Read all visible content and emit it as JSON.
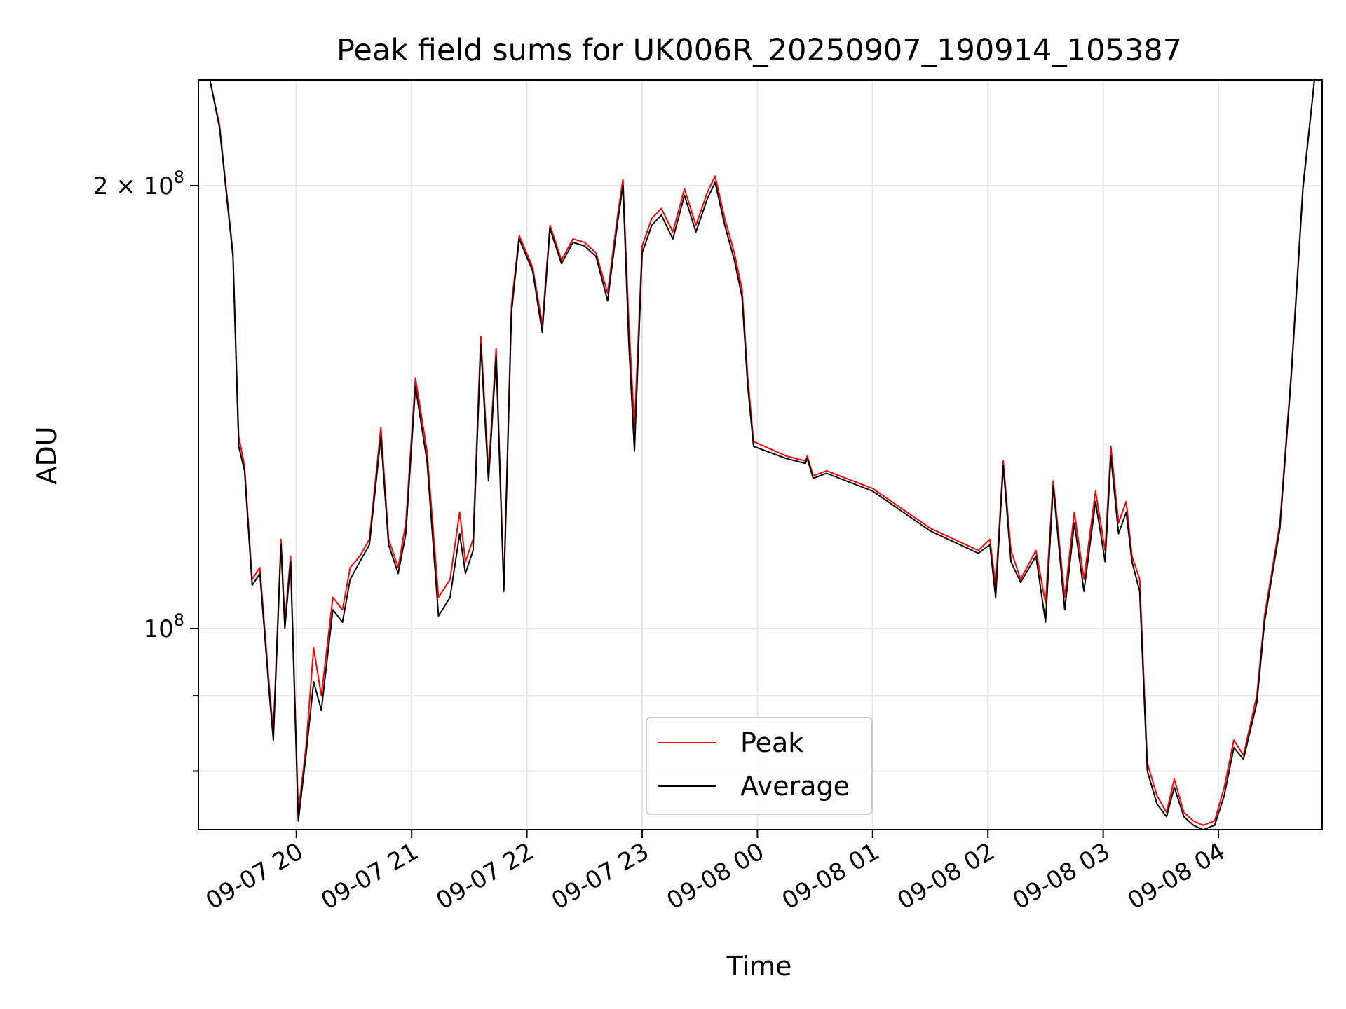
{
  "chart_data": {
    "type": "line",
    "title": "Peak field sums for UK006R_20250907_190914_105387",
    "xlabel": "Time",
    "ylabel": "ADU",
    "yscale": "log",
    "ylim": [
      73000000,
      236000000
    ],
    "xlim": [
      "2025-09-07 19:09",
      "2025-09-08 04:54"
    ],
    "grid": true,
    "legend_position": "lower-center",
    "x_ticks": [
      {
        "x": "2025-09-07 20:00",
        "label": "09-07 20"
      },
      {
        "x": "2025-09-07 21:00",
        "label": "09-07 21"
      },
      {
        "x": "2025-09-07 22:00",
        "label": "09-07 22"
      },
      {
        "x": "2025-09-07 23:00",
        "label": "09-07 23"
      },
      {
        "x": "2025-09-08 00:00",
        "label": "09-08 00"
      },
      {
        "x": "2025-09-08 01:00",
        "label": "09-08 01"
      },
      {
        "x": "2025-09-08 02:00",
        "label": "09-08 02"
      },
      {
        "x": "2025-09-08 03:00",
        "label": "09-08 03"
      },
      {
        "x": "2025-09-08 04:00",
        "label": "09-08 04"
      }
    ],
    "y_ticks": [
      {
        "value": 200000000,
        "base": "2 × 10",
        "exp": "8"
      },
      {
        "value": 100000000,
        "base": "10",
        "exp": "8"
      }
    ],
    "y_minor_ticks": [
      90000000,
      80000000
    ],
    "series": [
      {
        "name": "Peak",
        "color": "#ff0000",
        "points": [
          [
            "2025-09-07 19:09",
            236000000
          ],
          [
            "2025-09-07 19:15",
            236000000
          ],
          [
            "2025-09-07 19:20",
            220000000
          ],
          [
            "2025-09-07 19:27",
            180000000
          ],
          [
            "2025-09-07 19:30",
            135000000
          ],
          [
            "2025-09-07 19:33",
            129000000
          ],
          [
            "2025-09-07 19:37",
            108000000
          ],
          [
            "2025-09-07 19:41",
            110000000
          ],
          [
            "2025-09-07 19:46",
            91000000
          ],
          [
            "2025-09-07 19:48",
            85000000
          ],
          [
            "2025-09-07 19:52",
            115000000
          ],
          [
            "2025-09-07 19:54",
            101000000
          ],
          [
            "2025-09-07 19:57",
            112000000
          ],
          [
            "2025-09-07 20:01",
            75000000
          ],
          [
            "2025-09-07 20:05",
            83000000
          ],
          [
            "2025-09-07 20:09",
            97000000
          ],
          [
            "2025-09-07 20:13",
            90000000
          ],
          [
            "2025-09-07 20:19",
            105000000
          ],
          [
            "2025-09-07 20:24",
            103000000
          ],
          [
            "2025-09-07 20:28",
            110000000
          ],
          [
            "2025-09-07 20:33",
            112000000
          ],
          [
            "2025-09-07 20:38",
            115000000
          ],
          [
            "2025-09-07 20:44",
            137000000
          ],
          [
            "2025-09-07 20:48",
            115000000
          ],
          [
            "2025-09-07 20:53",
            110000000
          ],
          [
            "2025-09-07 20:57",
            118000000
          ],
          [
            "2025-09-07 21:02",
            148000000
          ],
          [
            "2025-09-07 21:08",
            132000000
          ],
          [
            "2025-09-07 21:14",
            105000000
          ],
          [
            "2025-09-07 21:20",
            108000000
          ],
          [
            "2025-09-07 21:25",
            120000000
          ],
          [
            "2025-09-07 21:28",
            111000000
          ],
          [
            "2025-09-07 21:32",
            115000000
          ],
          [
            "2025-09-07 21:36",
            158000000
          ],
          [
            "2025-09-07 21:40",
            128000000
          ],
          [
            "2025-09-07 21:44",
            155000000
          ],
          [
            "2025-09-07 21:48",
            107000000
          ],
          [
            "2025-09-07 21:52",
            166000000
          ],
          [
            "2025-09-07 21:56",
            185000000
          ],
          [
            "2025-09-07 22:03",
            176000000
          ],
          [
            "2025-09-07 22:08",
            161000000
          ],
          [
            "2025-09-07 22:12",
            188000000
          ],
          [
            "2025-09-07 22:18",
            178000000
          ],
          [
            "2025-09-07 22:24",
            184000000
          ],
          [
            "2025-09-07 22:30",
            183000000
          ],
          [
            "2025-09-07 22:36",
            180000000
          ],
          [
            "2025-09-07 22:42",
            169000000
          ],
          [
            "2025-09-07 22:47",
            190000000
          ],
          [
            "2025-09-07 22:50",
            202000000
          ],
          [
            "2025-09-07 22:53",
            162000000
          ],
          [
            "2025-09-07 22:56",
            137000000
          ],
          [
            "2025-09-07 23:00",
            182000000
          ],
          [
            "2025-09-07 23:05",
            190000000
          ],
          [
            "2025-09-07 23:10",
            193000000
          ],
          [
            "2025-09-07 23:16",
            186000000
          ],
          [
            "2025-09-07 23:22",
            199000000
          ],
          [
            "2025-09-07 23:28",
            188000000
          ],
          [
            "2025-09-07 23:34",
            198000000
          ],
          [
            "2025-09-07 23:38",
            203000000
          ],
          [
            "2025-09-07 23:43",
            190000000
          ],
          [
            "2025-09-07 23:48",
            180000000
          ],
          [
            "2025-09-07 23:52",
            170000000
          ],
          [
            "2025-09-07 23:55",
            148000000
          ],
          [
            "2025-09-07 23:58",
            134000000
          ],
          [
            "2025-09-08 00:15",
            131000000
          ],
          [
            "2025-09-08 00:25",
            130000000
          ],
          [
            "2025-09-08 00:26",
            131000000
          ],
          [
            "2025-09-08 00:29",
            127000000
          ],
          [
            "2025-09-08 00:36",
            128000000
          ],
          [
            "2025-09-08 01:00",
            124500000
          ],
          [
            "2025-09-08 01:30",
            117000000
          ],
          [
            "2025-09-08 01:55",
            113000000
          ],
          [
            "2025-09-08 02:01",
            115000000
          ],
          [
            "2025-09-08 02:04",
            107000000
          ],
          [
            "2025-09-08 02:08",
            130000000
          ],
          [
            "2025-09-08 02:12",
            113000000
          ],
          [
            "2025-09-08 02:17",
            108000000
          ],
          [
            "2025-09-08 02:25",
            113000000
          ],
          [
            "2025-09-08 02:30",
            104000000
          ],
          [
            "2025-09-08 02:34",
            126000000
          ],
          [
            "2025-09-08 02:40",
            105000000
          ],
          [
            "2025-09-08 02:45",
            120000000
          ],
          [
            "2025-09-08 02:50",
            108000000
          ],
          [
            "2025-09-08 02:56",
            124000000
          ],
          [
            "2025-09-08 03:01",
            113000000
          ],
          [
            "2025-09-08 03:04",
            133000000
          ],
          [
            "2025-09-08 03:08",
            118000000
          ],
          [
            "2025-09-08 03:12",
            122000000
          ],
          [
            "2025-09-08 03:15",
            112000000
          ],
          [
            "2025-09-08 03:19",
            108000000
          ],
          [
            "2025-09-08 03:23",
            81000000
          ],
          [
            "2025-09-08 03:28",
            77000000
          ],
          [
            "2025-09-08 03:33",
            75000000
          ],
          [
            "2025-09-08 03:37",
            79000000
          ],
          [
            "2025-09-08 03:42",
            75000000
          ],
          [
            "2025-09-08 03:47",
            74000000
          ],
          [
            "2025-09-08 03:52",
            73500000
          ],
          [
            "2025-09-08 03:58",
            74000000
          ],
          [
            "2025-09-08 04:03",
            78000000
          ],
          [
            "2025-09-08 04:08",
            84000000
          ],
          [
            "2025-09-08 04:13",
            82000000
          ],
          [
            "2025-09-08 04:20",
            90000000
          ],
          [
            "2025-09-08 04:24",
            102000000
          ],
          [
            "2025-09-08 04:32",
            118000000
          ],
          [
            "2025-09-08 04:38",
            150000000
          ],
          [
            "2025-09-08 04:44",
            200000000
          ],
          [
            "2025-09-08 04:50",
            236000000
          ],
          [
            "2025-09-08 04:54",
            236000000
          ]
        ]
      },
      {
        "name": "Average",
        "color": "#000000",
        "points": [
          [
            "2025-09-07 19:09",
            236000000
          ],
          [
            "2025-09-07 19:15",
            236000000
          ],
          [
            "2025-09-07 19:20",
            219000000
          ],
          [
            "2025-09-07 19:27",
            179000000
          ],
          [
            "2025-09-07 19:30",
            133000000
          ],
          [
            "2025-09-07 19:33",
            128000000
          ],
          [
            "2025-09-07 19:37",
            107000000
          ],
          [
            "2025-09-07 19:41",
            109000000
          ],
          [
            "2025-09-07 19:46",
            90000000
          ],
          [
            "2025-09-07 19:48",
            84000000
          ],
          [
            "2025-09-07 19:52",
            114000000
          ],
          [
            "2025-09-07 19:54",
            100000000
          ],
          [
            "2025-09-07 19:57",
            111000000
          ],
          [
            "2025-09-07 20:01",
            74000000
          ],
          [
            "2025-09-07 20:05",
            82000000
          ],
          [
            "2025-09-07 20:09",
            92000000
          ],
          [
            "2025-09-07 20:13",
            88000000
          ],
          [
            "2025-09-07 20:19",
            103000000
          ],
          [
            "2025-09-07 20:24",
            101000000
          ],
          [
            "2025-09-07 20:28",
            108000000
          ],
          [
            "2025-09-07 20:33",
            111000000
          ],
          [
            "2025-09-07 20:38",
            114000000
          ],
          [
            "2025-09-07 20:44",
            135000000
          ],
          [
            "2025-09-07 20:48",
            114000000
          ],
          [
            "2025-09-07 20:53",
            109000000
          ],
          [
            "2025-09-07 20:57",
            116000000
          ],
          [
            "2025-09-07 21:02",
            146000000
          ],
          [
            "2025-09-07 21:08",
            130000000
          ],
          [
            "2025-09-07 21:14",
            102000000
          ],
          [
            "2025-09-07 21:20",
            105000000
          ],
          [
            "2025-09-07 21:25",
            116000000
          ],
          [
            "2025-09-07 21:28",
            109000000
          ],
          [
            "2025-09-07 21:32",
            113000000
          ],
          [
            "2025-09-07 21:36",
            156000000
          ],
          [
            "2025-09-07 21:40",
            126000000
          ],
          [
            "2025-09-07 21:44",
            153000000
          ],
          [
            "2025-09-07 21:48",
            106000000
          ],
          [
            "2025-09-07 21:52",
            164000000
          ],
          [
            "2025-09-07 21:56",
            184000000
          ],
          [
            "2025-09-07 22:03",
            175000000
          ],
          [
            "2025-09-07 22:08",
            159000000
          ],
          [
            "2025-09-07 22:12",
            187000000
          ],
          [
            "2025-09-07 22:18",
            177000000
          ],
          [
            "2025-09-07 22:24",
            183000000
          ],
          [
            "2025-09-07 22:30",
            182000000
          ],
          [
            "2025-09-07 22:36",
            179000000
          ],
          [
            "2025-09-07 22:42",
            167000000
          ],
          [
            "2025-09-07 22:47",
            188000000
          ],
          [
            "2025-09-07 22:50",
            200000000
          ],
          [
            "2025-09-07 22:53",
            157000000
          ],
          [
            "2025-09-07 22:56",
            132000000
          ],
          [
            "2025-09-07 23:00",
            180000000
          ],
          [
            "2025-09-07 23:05",
            188000000
          ],
          [
            "2025-09-07 23:10",
            191000000
          ],
          [
            "2025-09-07 23:16",
            184000000
          ],
          [
            "2025-09-07 23:22",
            197000000
          ],
          [
            "2025-09-07 23:28",
            186000000
          ],
          [
            "2025-09-07 23:34",
            196000000
          ],
          [
            "2025-09-07 23:38",
            201000000
          ],
          [
            "2025-09-07 23:43",
            188000000
          ],
          [
            "2025-09-07 23:48",
            178000000
          ],
          [
            "2025-09-07 23:52",
            168000000
          ],
          [
            "2025-09-07 23:55",
            146000000
          ],
          [
            "2025-09-07 23:58",
            133000000
          ],
          [
            "2025-09-08 00:15",
            130500000
          ],
          [
            "2025-09-08 00:25",
            129500000
          ],
          [
            "2025-09-08 00:26",
            130500000
          ],
          [
            "2025-09-08 00:29",
            126500000
          ],
          [
            "2025-09-08 00:36",
            127500000
          ],
          [
            "2025-09-08 01:00",
            124000000
          ],
          [
            "2025-09-08 01:30",
            116500000
          ],
          [
            "2025-09-08 01:55",
            112500000
          ],
          [
            "2025-09-08 02:01",
            114000000
          ],
          [
            "2025-09-08 02:04",
            105000000
          ],
          [
            "2025-09-08 02:08",
            129000000
          ],
          [
            "2025-09-08 02:12",
            111000000
          ],
          [
            "2025-09-08 02:17",
            107500000
          ],
          [
            "2025-09-08 02:25",
            112000000
          ],
          [
            "2025-09-08 02:30",
            101000000
          ],
          [
            "2025-09-08 02:34",
            125000000
          ],
          [
            "2025-09-08 02:40",
            103000000
          ],
          [
            "2025-09-08 02:45",
            118000000
          ],
          [
            "2025-09-08 02:50",
            106000000
          ],
          [
            "2025-09-08 02:56",
            122000000
          ],
          [
            "2025-09-08 03:01",
            111000000
          ],
          [
            "2025-09-08 03:04",
            131000000
          ],
          [
            "2025-09-08 03:08",
            116000000
          ],
          [
            "2025-09-08 03:12",
            120000000
          ],
          [
            "2025-09-08 03:15",
            111000000
          ],
          [
            "2025-09-08 03:19",
            106000000
          ],
          [
            "2025-09-08 03:23",
            80000000
          ],
          [
            "2025-09-08 03:28",
            76000000
          ],
          [
            "2025-09-08 03:33",
            74500000
          ],
          [
            "2025-09-08 03:37",
            78000000
          ],
          [
            "2025-09-08 03:42",
            74500000
          ],
          [
            "2025-09-08 03:47",
            73500000
          ],
          [
            "2025-09-08 03:52",
            73000000
          ],
          [
            "2025-09-08 03:58",
            73500000
          ],
          [
            "2025-09-08 04:03",
            77000000
          ],
          [
            "2025-09-08 04:08",
            83000000
          ],
          [
            "2025-09-08 04:13",
            81500000
          ],
          [
            "2025-09-08 04:20",
            89000000
          ],
          [
            "2025-09-08 04:24",
            101000000
          ],
          [
            "2025-09-08 04:32",
            117000000
          ],
          [
            "2025-09-08 04:38",
            149000000
          ],
          [
            "2025-09-08 04:44",
            199000000
          ],
          [
            "2025-09-08 04:50",
            236000000
          ],
          [
            "2025-09-08 04:54",
            236000000
          ]
        ]
      }
    ]
  }
}
